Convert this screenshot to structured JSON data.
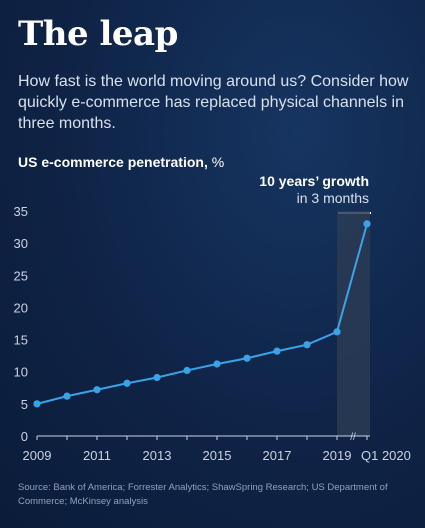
{
  "header": {
    "title": "The leap",
    "subtitle": "How fast is the world moving around us? Consider how quickly e-commerce has replaced physical channels in three months."
  },
  "chart_label": {
    "bold": "US e-commerce penetration,",
    "unit": " %"
  },
  "callout": {
    "line1": "10 years’ growth",
    "line2": "in 3 months"
  },
  "source": "Source: Bank of America; Forrester Analytics; ShawSpring Research; US Department of Commerce; McKinsey analysis",
  "colors": {
    "line": "#3aa3e8",
    "axis_text": "#c9d3e2",
    "grid": "#4a5f80",
    "highlight": "#2a3b55"
  },
  "chart_data": {
    "type": "line",
    "title": "US e-commerce penetration, %",
    "x": [
      "2009",
      "2010",
      "2011",
      "2012",
      "2013",
      "2014",
      "2015",
      "2016",
      "2017",
      "2018",
      "2019",
      "Q1 2020"
    ],
    "series": [
      {
        "values": [
          5,
          6.2,
          7.2,
          8.2,
          9.1,
          10.2,
          11.2,
          12.1,
          13.2,
          14.2,
          16.2,
          33
        ]
      }
    ],
    "x_tick_labels": [
      "2009",
      "2011",
      "2013",
      "2015",
      "2017",
      "2019",
      "Q1 2020"
    ],
    "y_ticks": [
      0,
      5,
      10,
      15,
      20,
      25,
      30,
      35
    ],
    "ylim": [
      0,
      35
    ],
    "axis_break_symbol": "//",
    "highlight_range": [
      "2019",
      "Q1 2020"
    ],
    "grid": false
  }
}
